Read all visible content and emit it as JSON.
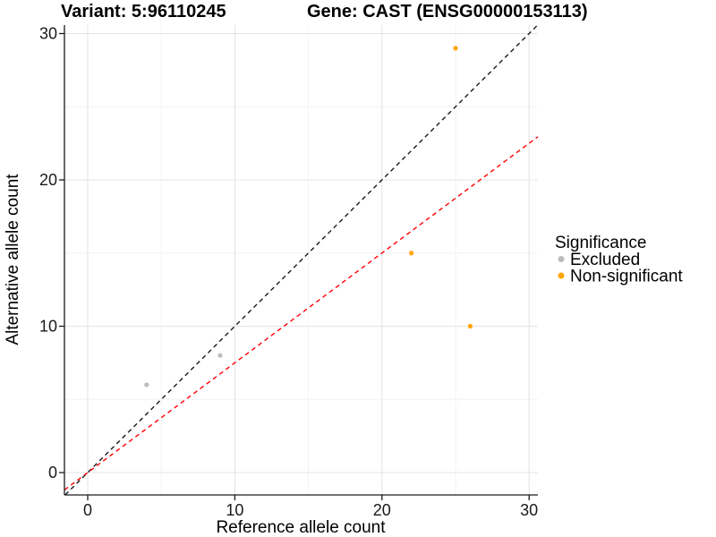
{
  "header": {
    "variant_title": "Variant: 5:96110245",
    "gene_title": "Gene: CAST (ENSG00000153113)"
  },
  "chart_data": {
    "type": "scatter",
    "title": "Variant: 5:96110245 | Gene: CAST (ENSG00000153113)",
    "xlabel": "Reference allele count",
    "ylabel": "Alternative allele count",
    "xlim": [
      -1.6,
      30.6
    ],
    "ylim": [
      -1.5,
      30.6
    ],
    "x_ticks": [
      0,
      10,
      20,
      30
    ],
    "y_ticks": [
      0,
      10,
      20,
      30
    ],
    "x_minor_ticks": [
      5,
      15,
      25
    ],
    "y_minor_ticks": [
      5,
      15,
      25
    ],
    "grid": "major+minor",
    "series": [
      {
        "name": "Excluded",
        "color": "#BDBDBD",
        "points": [
          [
            4,
            6
          ],
          [
            9,
            8
          ]
        ]
      },
      {
        "name": "Non-significant",
        "color": "#FFA500",
        "points": [
          [
            25,
            29
          ],
          [
            22,
            15
          ],
          [
            26,
            10
          ]
        ]
      }
    ],
    "lines": [
      {
        "name": "identity-line",
        "slope": 1,
        "intercept": 0,
        "color": "#1A1A1A",
        "style": "dashed"
      },
      {
        "name": "expected-ratio-line",
        "slope": 0.75,
        "intercept": 0,
        "color": "#FF0000",
        "style": "dashed"
      }
    ],
    "legend": {
      "title": "Significance",
      "position": "right",
      "items": [
        {
          "label": "Excluded",
          "color": "#BDBDBD"
        },
        {
          "label": "Non-significant",
          "color": "#FFA500"
        }
      ]
    },
    "colors": {
      "grid_major": "#E4E4E4",
      "grid_minor": "#F2F2F2",
      "axis": "#1A1A1A",
      "background": "#FFFFFF"
    }
  }
}
